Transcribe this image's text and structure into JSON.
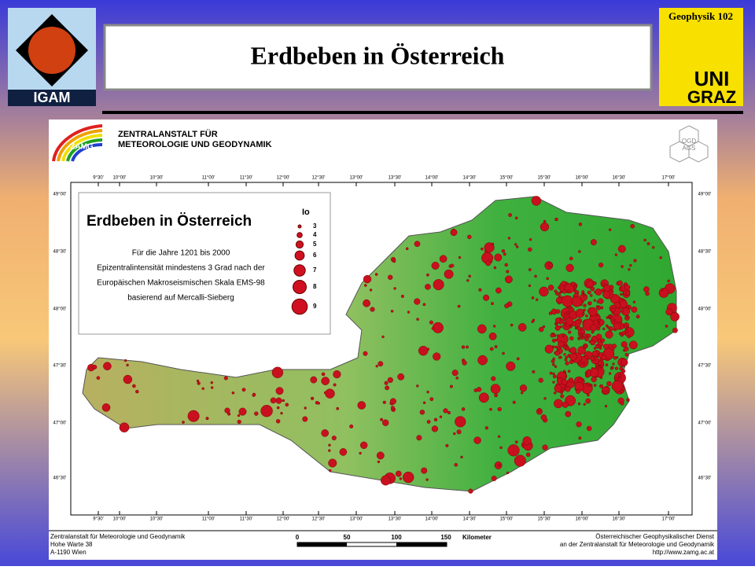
{
  "header": {
    "title": "Erdbeben in Österreich",
    "course": "Geophysik 102",
    "left_logo": "IGAM",
    "right_logo": [
      "UNI",
      "GRAZ"
    ]
  },
  "map": {
    "agency": [
      "ZENTRALANSTALT FÜR",
      "METEOROLOGIE UND GEODYNAMIK"
    ],
    "agency_logo": "ZAMG",
    "partner_logo": [
      "OGD",
      "AGS"
    ],
    "legend": {
      "title": "Erdbeben in Österreich",
      "scale_title": "Io",
      "intensities": [
        "3",
        "4",
        "5",
        "6",
        "7",
        "8",
        "9"
      ],
      "description": [
        "Für die Jahre 1201 bis 2000",
        "Epizentralintensität mindestens 3 Grad nach der",
        "Europäischen Makroseismischen Skala EMS-98",
        "basierend auf Mercalli-Sieberg"
      ]
    },
    "longitudes": [
      "9°30'",
      "10°00'",
      "10°30'",
      "11°00'",
      "11°30'",
      "12°00'",
      "12°30'",
      "13°00'",
      "13°30'",
      "14°00'",
      "14°30'",
      "15°00'",
      "15°30'",
      "16°00'",
      "16°30'",
      "17°00'"
    ],
    "latitudes": [
      "49°00'",
      "48°30'",
      "48°00'",
      "47°30'",
      "47°00'",
      "46°30'"
    ],
    "scale_bar": {
      "labels": [
        "0",
        "50",
        "100",
        "150"
      ],
      "unit": "Kilometer"
    },
    "footer_left": [
      "Zentralanstalt für Meteorologie und Geodynamik",
      "Hohe Warte 38",
      "A-1190 Wien"
    ],
    "footer_right": [
      "Österreichischer Geophysikalischer Dienst",
      "an der Zentralanstalt für Meteorologie und Geodynamik",
      "http://www.zamg.ac.at"
    ]
  }
}
